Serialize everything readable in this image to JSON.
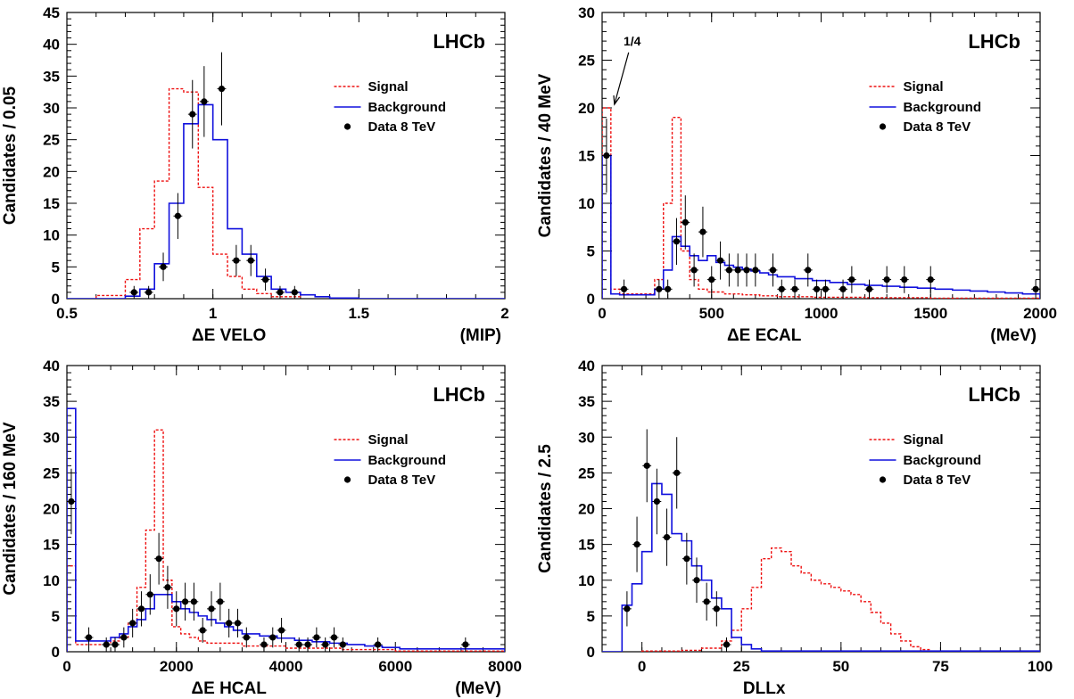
{
  "legend": {
    "signal": "Signal",
    "background": "Background",
    "data": "Data 8 TeV"
  },
  "colors": {
    "signal": "#ee1111",
    "background": "#1010dd",
    "data": "#000000"
  },
  "chart_data": [
    {
      "type": "line",
      "brand": "LHCb",
      "xlabel": "ΔE VELO",
      "xunit": "(MIP)",
      "ylabel": "Candidates / 0.05",
      "xlim": [
        0.5,
        2.0
      ],
      "ylim": [
        0,
        45
      ],
      "xticks": [
        0.5,
        1,
        1.5,
        2
      ],
      "xtick_labels": [
        "0.5",
        "1",
        "1.5",
        "2"
      ],
      "yticks": [
        0,
        5,
        10,
        15,
        20,
        25,
        30,
        35,
        40,
        45
      ],
      "legend_position": "right",
      "signal": {
        "edges": [
          0.6,
          0.7,
          0.75,
          0.8,
          0.85,
          0.9,
          0.95,
          1.0,
          1.05,
          1.1,
          1.15,
          1.2,
          1.3
        ],
        "values": [
          0.5,
          3,
          11,
          18.5,
          33,
          32.5,
          17.5,
          7,
          3.5,
          1.5,
          0.8,
          0.3
        ]
      },
      "background": {
        "edges": [
          0.5,
          0.7,
          0.75,
          0.8,
          0.85,
          0.9,
          0.95,
          1.0,
          1.05,
          1.1,
          1.15,
          1.2,
          1.25,
          1.3,
          1.35,
          1.4,
          1.5,
          2.0
        ],
        "values": [
          0,
          0.4,
          1.5,
          5.5,
          15,
          27.5,
          30.5,
          25,
          11,
          7,
          3.5,
          1.5,
          1,
          0.6,
          0.3,
          0.1,
          0
        ]
      },
      "data": {
        "x": [
          0.73,
          0.78,
          0.83,
          0.88,
          0.93,
          0.97,
          1.03,
          1.08,
          1.13,
          1.18,
          1.23,
          1.28
        ],
        "y": [
          1,
          1,
          5,
          13,
          29,
          31,
          33,
          6,
          6,
          3,
          1,
          1
        ]
      }
    },
    {
      "type": "line",
      "brand": "LHCb",
      "xlabel": "ΔE ECAL",
      "xunit": "(MeV)",
      "ylabel": "Candidates / 40 MeV",
      "xlim": [
        0,
        2000
      ],
      "ylim": [
        0,
        30
      ],
      "xticks": [
        0,
        500,
        1000,
        1500,
        2000
      ],
      "xtick_labels": [
        "0",
        "500",
        "1000",
        "1500",
        "2000"
      ],
      "yticks": [
        0,
        5,
        10,
        15,
        20,
        25,
        30
      ],
      "legend_position": "right",
      "annotation": {
        "text": "1/4",
        "x": 40,
        "y": 20,
        "text_x": 170,
        "text_y": 26
      },
      "signal": {
        "edges": [
          0,
          40,
          80,
          240,
          280,
          320,
          360,
          400,
          440,
          480,
          560,
          640,
          720,
          800,
          960,
          1200,
          1500,
          2000
        ],
        "values": [
          20,
          1,
          0.5,
          2,
          10,
          19,
          5,
          2,
          1,
          0.7,
          0.5,
          0.4,
          0.3,
          0.2,
          0.15,
          0.1,
          0.05
        ]
      },
      "background": {
        "edges": [
          0,
          40,
          80,
          240,
          280,
          320,
          360,
          400,
          440,
          480,
          520,
          560,
          600,
          640,
          680,
          720,
          760,
          800,
          880,
          960,
          1040,
          1120,
          1200,
          1280,
          1360,
          1440,
          1520,
          1600,
          1680,
          1760,
          1840,
          1920,
          2000
        ],
        "values": [
          15,
          0.5,
          0.4,
          1,
          3,
          6.5,
          5.5,
          4.5,
          4,
          4.5,
          3.8,
          3.5,
          3.3,
          3.1,
          2.9,
          2.7,
          2.5,
          2.3,
          2.1,
          1.9,
          1.7,
          1.5,
          1.4,
          1.3,
          1.2,
          1.1,
          1.0,
          0.9,
          0.8,
          0.7,
          0.6,
          0.5
        ]
      },
      "data": {
        "x": [
          20,
          100,
          260,
          300,
          340,
          380,
          420,
          460,
          500,
          540,
          580,
          620,
          660,
          700,
          780,
          820,
          880,
          940,
          980,
          1020,
          1100,
          1140,
          1220,
          1300,
          1380,
          1500,
          1980
        ],
        "y": [
          15,
          1,
          1,
          1,
          6,
          8,
          3,
          7,
          2,
          4,
          3,
          3,
          3,
          3,
          3,
          1,
          1,
          3,
          1,
          1,
          1,
          2,
          1,
          2,
          2,
          2,
          1
        ]
      }
    },
    {
      "type": "line",
      "brand": "LHCb",
      "xlabel": "ΔE HCAL",
      "xunit": "(MeV)",
      "ylabel": "Candidates / 160 MeV",
      "xlim": [
        0,
        8000
      ],
      "ylim": [
        0,
        40
      ],
      "xticks": [
        0,
        2000,
        4000,
        6000,
        8000
      ],
      "xtick_labels": [
        "0",
        "2000",
        "4000",
        "6000",
        "8000"
      ],
      "yticks": [
        0,
        5,
        10,
        15,
        20,
        25,
        30,
        35,
        40
      ],
      "legend_position": "right",
      "signal": {
        "edges": [
          0,
          160,
          800,
          960,
          1120,
          1280,
          1440,
          1600,
          1760,
          1920,
          2080,
          2240,
          2400,
          2560,
          3200,
          4000,
          5000,
          6000,
          8000
        ],
        "values": [
          12,
          1,
          1.5,
          2,
          4,
          9,
          17,
          31,
          10,
          3.5,
          2.5,
          2,
          1.5,
          1.2,
          0.8,
          0.5,
          0.3,
          0.1
        ]
      },
      "background": {
        "edges": [
          0,
          160,
          800,
          960,
          1120,
          1280,
          1440,
          1600,
          1760,
          1920,
          2080,
          2240,
          2400,
          2560,
          2720,
          2880,
          3040,
          3200,
          3520,
          3840,
          4160,
          4480,
          4800,
          5120,
          5440,
          5760,
          6080,
          8000
        ],
        "values": [
          34,
          1.5,
          2,
          2.5,
          3.5,
          4.5,
          6,
          8,
          8,
          7,
          6,
          5.5,
          5,
          4.5,
          4,
          3.5,
          3,
          2.5,
          2.2,
          1.9,
          1.6,
          1.4,
          1.2,
          1,
          0.8,
          0.6,
          0.4
        ]
      },
      "data": {
        "x": [
          80,
          400,
          720,
          880,
          1040,
          1200,
          1360,
          1520,
          1680,
          1840,
          2000,
          2160,
          2320,
          2480,
          2640,
          2800,
          2960,
          3120,
          3280,
          3600,
          3760,
          3920,
          4240,
          4400,
          4560,
          4720,
          4880,
          5040,
          5680,
          7280
        ],
        "y": [
          21,
          2,
          1,
          1,
          2,
          4,
          6,
          8,
          13,
          9,
          6,
          7,
          7,
          3,
          6,
          7,
          4,
          4,
          2,
          1,
          2,
          3,
          1,
          1,
          2,
          1,
          2,
          1,
          1,
          1
        ]
      }
    },
    {
      "type": "line",
      "brand": "LHCb",
      "xlabel": "DLLx",
      "xunit": "",
      "ylabel": "Candidates / 2.5",
      "xlim": [
        -10,
        100
      ],
      "ylim": [
        0,
        40
      ],
      "xticks": [
        0,
        25,
        50,
        75,
        100
      ],
      "xtick_labels": [
        "0",
        "25",
        "50",
        "75",
        "100"
      ],
      "yticks": [
        0,
        5,
        10,
        15,
        20,
        25,
        30,
        35,
        40
      ],
      "legend_position": "right",
      "signal": {
        "edges": [
          0,
          10,
          15,
          20,
          22.5,
          25,
          27.5,
          30,
          32.5,
          35,
          37.5,
          40,
          42.5,
          45,
          47.5,
          50,
          52.5,
          55,
          57.5,
          60,
          62.5,
          65,
          67.5,
          70,
          72.5,
          75
        ],
        "values": [
          0.1,
          0.2,
          0.5,
          1.5,
          3,
          6,
          9,
          13,
          14.5,
          14,
          12,
          11,
          10,
          9.5,
          9,
          8.5,
          8,
          7,
          5.5,
          4,
          2.5,
          1.5,
          0.7,
          0.3,
          0.1
        ]
      },
      "background": {
        "edges": [
          -10,
          -5,
          -2.5,
          0,
          2.5,
          5,
          7.5,
          10,
          12.5,
          15,
          17.5,
          20,
          22.5,
          25,
          27.5,
          30,
          100
        ],
        "values": [
          0,
          6.5,
          9.5,
          14,
          23.5,
          22,
          16.5,
          15.5,
          12,
          10,
          7.5,
          6,
          2,
          1,
          0.4,
          0.1
        ]
      },
      "data": {
        "x": [
          -3.75,
          -1.25,
          1.25,
          3.75,
          6.25,
          8.75,
          11.25,
          13.75,
          16.25,
          18.75,
          21.25
        ],
        "y": [
          6,
          15,
          26,
          21,
          16,
          25,
          13,
          10,
          7,
          6,
          1
        ]
      }
    }
  ]
}
